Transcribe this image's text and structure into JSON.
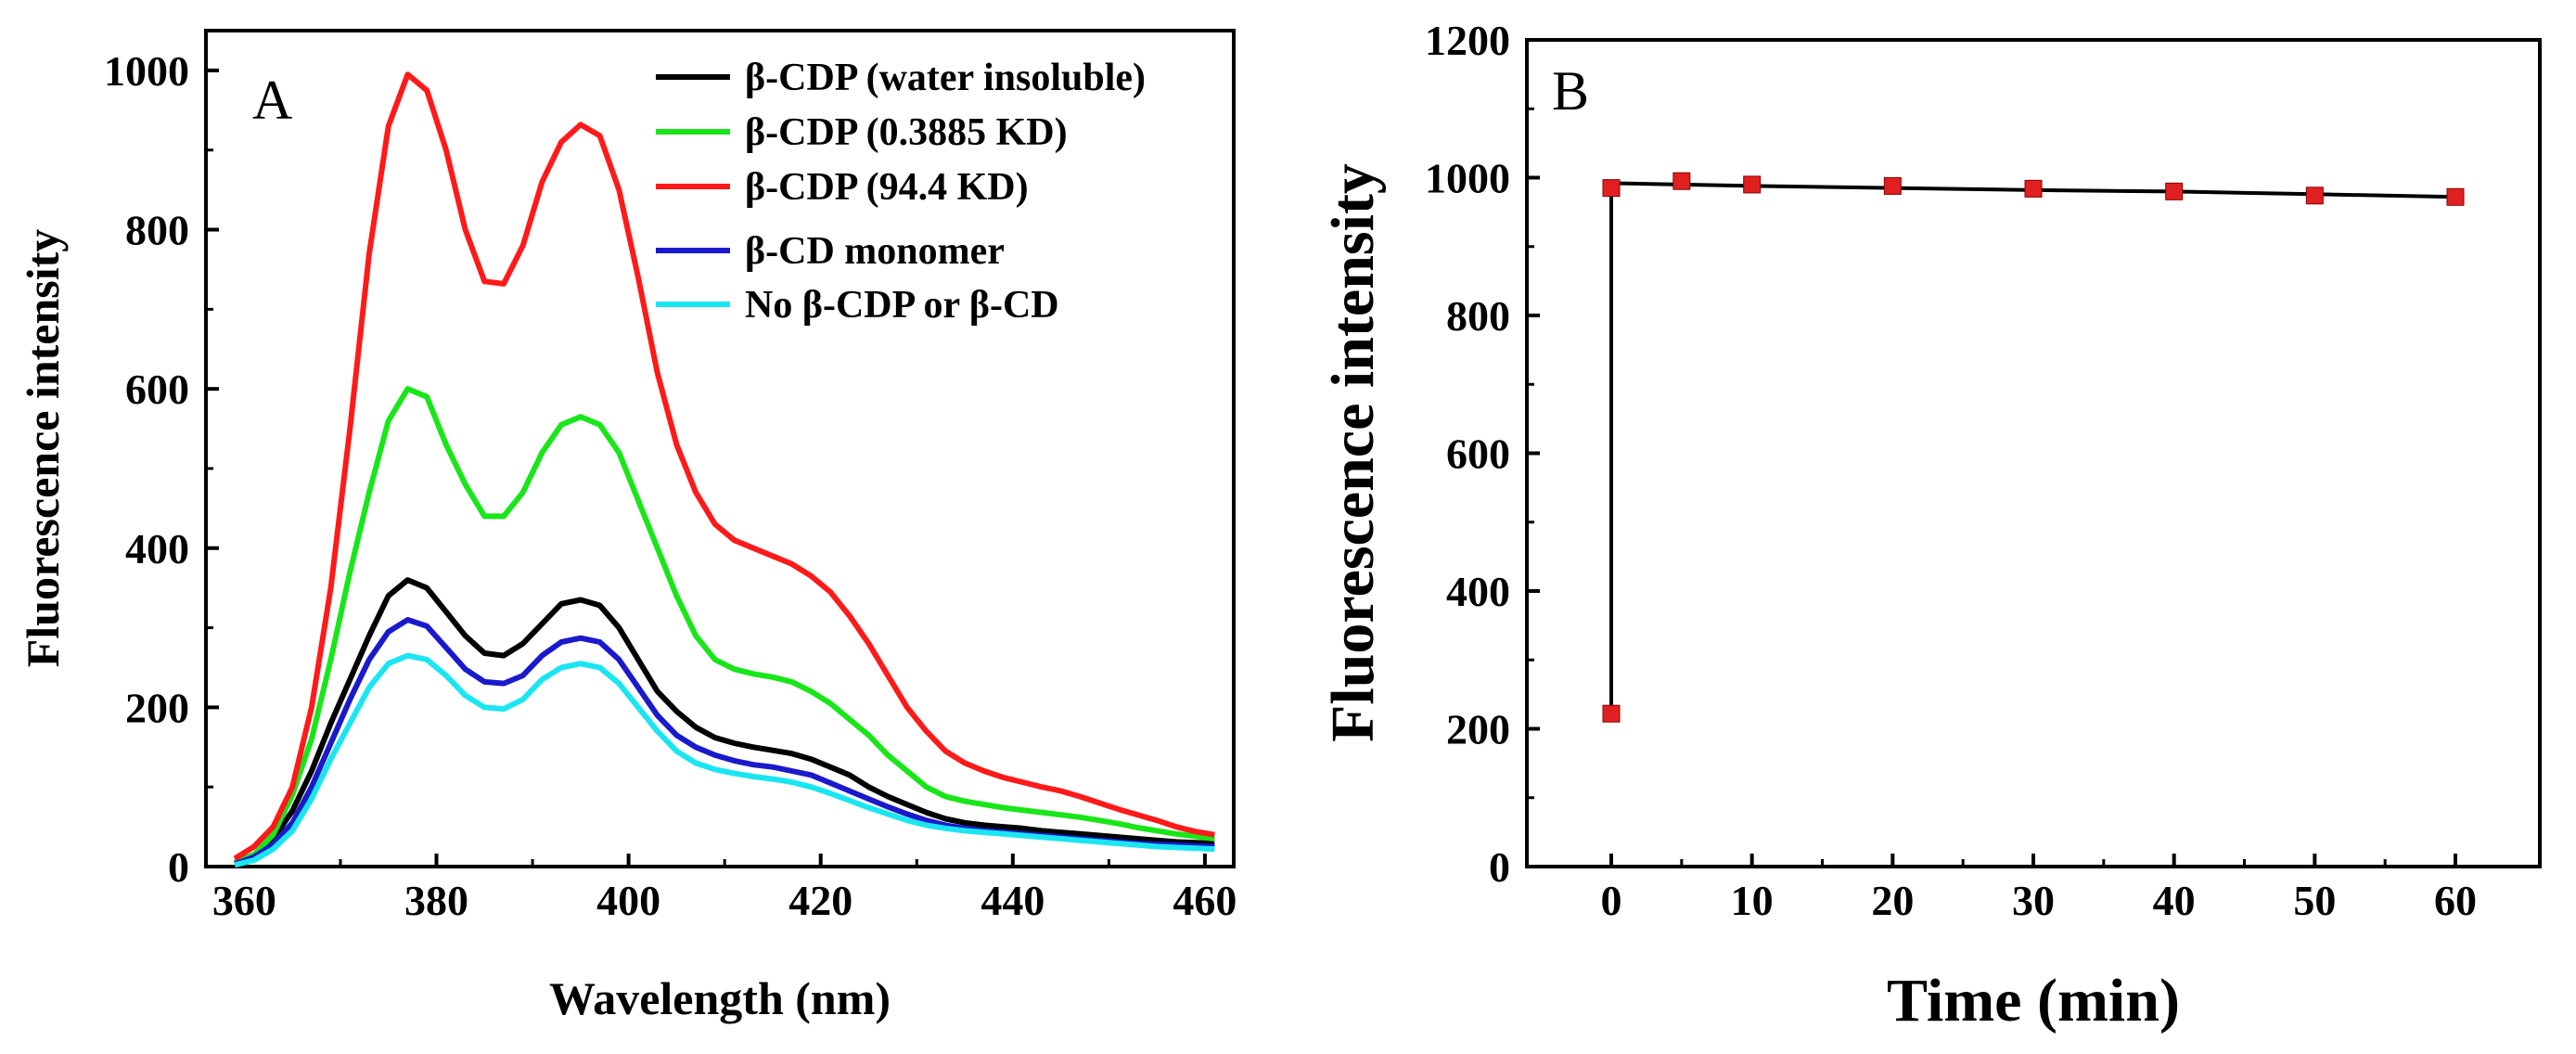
{
  "chart_data": [
    {
      "panel": "A",
      "type": "line",
      "xlabel": "Wavelength (nm)",
      "ylabel": "Fluorescence intensity",
      "xlim": [
        356,
        463
      ],
      "ylim": [
        0,
        1050
      ],
      "xticks": [
        360,
        380,
        400,
        420,
        440,
        460
      ],
      "yticks": [
        0,
        200,
        400,
        600,
        800,
        1000
      ],
      "legend_position": "top-right",
      "x": [
        359,
        361,
        363,
        365,
        367,
        369,
        371,
        373,
        375,
        377,
        379,
        381,
        383,
        385,
        387,
        389,
        391,
        393,
        395,
        397,
        399,
        401,
        403,
        405,
        407,
        409,
        411,
        413,
        415,
        417,
        419,
        421,
        423,
        425,
        427,
        429,
        431,
        433,
        435,
        437,
        439,
        441,
        443,
        445,
        447,
        449,
        451,
        453,
        455,
        457,
        459,
        461
      ],
      "series": [
        {
          "name": "β-CDP (water insoluble)",
          "color": "#000000",
          "values": [
            5,
            15,
            35,
            70,
            120,
            180,
            235,
            290,
            340,
            360,
            350,
            320,
            290,
            268,
            265,
            280,
            305,
            330,
            335,
            328,
            300,
            260,
            220,
            195,
            175,
            162,
            155,
            150,
            146,
            142,
            135,
            125,
            115,
            100,
            88,
            78,
            68,
            60,
            55,
            52,
            50,
            48,
            45,
            43,
            41,
            39,
            37,
            35,
            33,
            31,
            30,
            29
          ]
        },
        {
          "name": "β-CDP (0.3885 KD)",
          "color": "#19e619",
          "values": [
            5,
            15,
            40,
            90,
            160,
            260,
            370,
            470,
            560,
            600,
            590,
            530,
            480,
            440,
            440,
            470,
            520,
            555,
            565,
            555,
            520,
            460,
            400,
            340,
            290,
            260,
            248,
            242,
            238,
            232,
            220,
            205,
            185,
            165,
            140,
            120,
            100,
            88,
            82,
            78,
            74,
            71,
            68,
            65,
            62,
            58,
            54,
            49,
            45,
            41,
            38,
            35
          ]
        },
        {
          "name": "β-CDP (94.4 KD)",
          "color": "#ff1a1a",
          "values": [
            10,
            25,
            50,
            100,
            200,
            350,
            550,
            770,
            930,
            995,
            975,
            900,
            800,
            735,
            732,
            780,
            860,
            910,
            932,
            918,
            850,
            740,
            620,
            530,
            470,
            430,
            410,
            400,
            390,
            380,
            365,
            345,
            315,
            280,
            240,
            200,
            170,
            145,
            130,
            120,
            112,
            106,
            100,
            95,
            88,
            80,
            72,
            65,
            58,
            50,
            44,
            40
          ]
        },
        {
          "name": "β-CD monomer",
          "color": "#1a1acc",
          "values": [
            3,
            12,
            28,
            55,
            100,
            155,
            210,
            260,
            295,
            310,
            302,
            275,
            248,
            232,
            230,
            240,
            265,
            282,
            287,
            282,
            260,
            225,
            190,
            165,
            150,
            140,
            133,
            128,
            125,
            120,
            115,
            105,
            95,
            85,
            75,
            66,
            58,
            52,
            48,
            45,
            43,
            41,
            39,
            37,
            35,
            33,
            31,
            29,
            28,
            27,
            26,
            25
          ]
        },
        {
          "name": "No β-CDP or β-CD",
          "color": "#1ae6f2",
          "values": [
            2,
            8,
            22,
            45,
            85,
            135,
            180,
            225,
            255,
            265,
            260,
            240,
            215,
            200,
            198,
            210,
            235,
            250,
            255,
            250,
            230,
            200,
            170,
            145,
            130,
            122,
            117,
            113,
            110,
            106,
            100,
            92,
            83,
            74,
            66,
            58,
            52,
            48,
            45,
            43,
            41,
            39,
            37,
            35,
            33,
            31,
            29,
            27,
            25,
            24,
            23,
            22
          ]
        }
      ]
    },
    {
      "panel": "B",
      "type": "line",
      "xlabel": "Time (min)",
      "ylabel": "Fluorescence intensity",
      "xlim": [
        -6,
        66
      ],
      "ylim": [
        0,
        1200
      ],
      "xticks": [
        0,
        10,
        20,
        30,
        40,
        50,
        60
      ],
      "yticks": [
        0,
        200,
        400,
        600,
        800,
        1000,
        1200
      ],
      "series": [
        {
          "name": "line",
          "color": "#000000",
          "x": [
            0,
            0,
            5,
            10,
            20,
            30,
            40,
            50,
            60
          ],
          "values": [
            222,
            992,
            990,
            988,
            985,
            982,
            980,
            976,
            972
          ]
        },
        {
          "name": "markers",
          "color": "#e02020",
          "x": [
            0,
            0,
            5,
            10,
            20,
            30,
            40,
            50,
            60
          ],
          "values": [
            222,
            985,
            995,
            990,
            988,
            984,
            980,
            974,
            972
          ]
        }
      ]
    }
  ]
}
